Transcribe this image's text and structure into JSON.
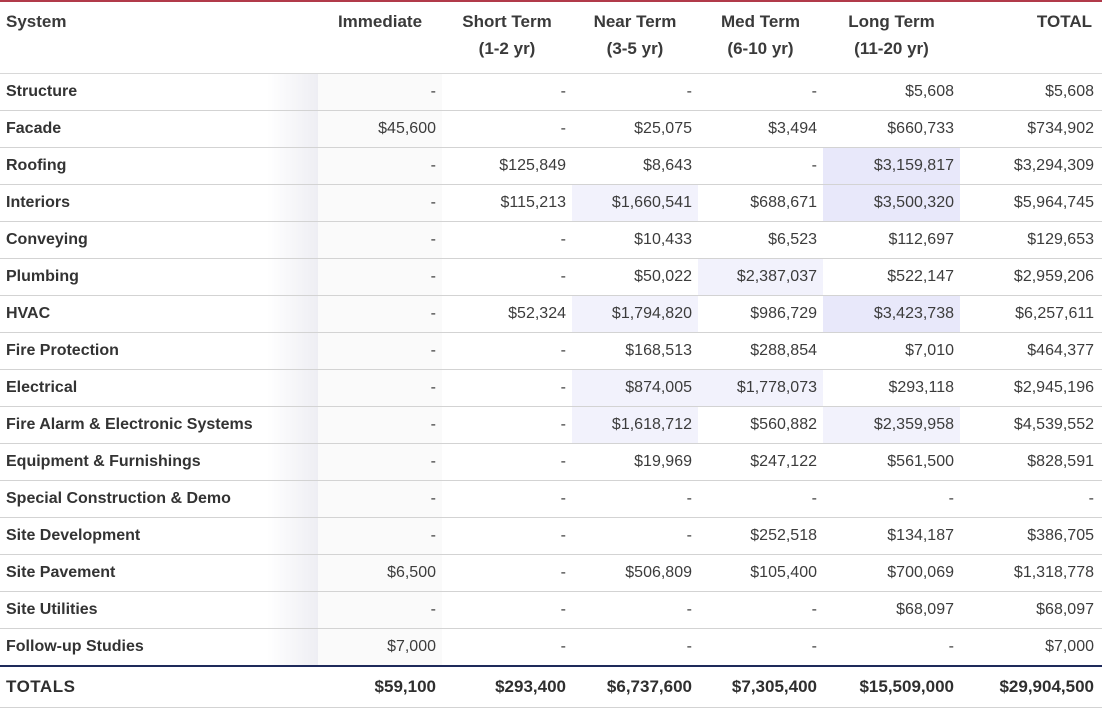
{
  "headers": {
    "system": "System",
    "immediate": "Immediate",
    "short_term": [
      "Short Term",
      "(1-2 yr)"
    ],
    "near_term": [
      "Near Term",
      "(3-5 yr)"
    ],
    "med_term": [
      "Med Term",
      "(6-10 yr)"
    ],
    "long_term": [
      "Long Term",
      "(11-20 yr)"
    ],
    "total": "TOTAL"
  },
  "rows": [
    {
      "system": "Structure",
      "values": [
        "-",
        "-",
        "-",
        "-",
        "$5,608",
        "$5,608"
      ],
      "shade": [
        "",
        "",
        "",
        "",
        "",
        ""
      ]
    },
    {
      "system": "Facade",
      "values": [
        "$45,600",
        "-",
        "$25,075",
        "$3,494",
        "$660,733",
        "$734,902"
      ],
      "shade": [
        "",
        "",
        "",
        "",
        "",
        ""
      ]
    },
    {
      "system": "Roofing",
      "values": [
        "-",
        "$125,849",
        "$8,643",
        "-",
        "$3,159,817",
        "$3,294,309"
      ],
      "shade": [
        "",
        "",
        "",
        "",
        "hl",
        ""
      ]
    },
    {
      "system": "Interiors",
      "values": [
        "-",
        "$115,213",
        "$1,660,541",
        "$688,671",
        "$3,500,320",
        "$5,964,745"
      ],
      "shade": [
        "",
        "",
        "hl-lt",
        "",
        "hl",
        ""
      ]
    },
    {
      "system": "Conveying",
      "values": [
        "-",
        "-",
        "$10,433",
        "$6,523",
        "$112,697",
        "$129,653"
      ],
      "shade": [
        "",
        "",
        "",
        "",
        "",
        ""
      ]
    },
    {
      "system": "Plumbing",
      "values": [
        "-",
        "-",
        "$50,022",
        "$2,387,037",
        "$522,147",
        "$2,959,206"
      ],
      "shade": [
        "",
        "",
        "",
        "hl-lt",
        "",
        ""
      ]
    },
    {
      "system": "HVAC",
      "values": [
        "-",
        "$52,324",
        "$1,794,820",
        "$986,729",
        "$3,423,738",
        "$6,257,611"
      ],
      "shade": [
        "",
        "",
        "hl-lt",
        "",
        "hl",
        ""
      ]
    },
    {
      "system": "Fire Protection",
      "values": [
        "-",
        "-",
        "$168,513",
        "$288,854",
        "$7,010",
        "$464,377"
      ],
      "shade": [
        "",
        "",
        "",
        "",
        "",
        ""
      ]
    },
    {
      "system": "Electrical",
      "values": [
        "-",
        "-",
        "$874,005",
        "$1,778,073",
        "$293,118",
        "$2,945,196"
      ],
      "shade": [
        "",
        "",
        "hl-lt",
        "hl-lt",
        "",
        ""
      ]
    },
    {
      "system": "Fire Alarm & Electronic Systems",
      "values": [
        "-",
        "-",
        "$1,618,712",
        "$560,882",
        "$2,359,958",
        "$4,539,552"
      ],
      "shade": [
        "",
        "",
        "hl-lt",
        "",
        "hl-lt",
        ""
      ]
    },
    {
      "system": "Equipment & Furnishings",
      "values": [
        "-",
        "-",
        "$19,969",
        "$247,122",
        "$561,500",
        "$828,591"
      ],
      "shade": [
        "",
        "",
        "",
        "",
        "",
        ""
      ]
    },
    {
      "system": "Special Construction & Demo",
      "values": [
        "-",
        "-",
        "-",
        "-",
        "-",
        "-"
      ],
      "shade": [
        "",
        "",
        "",
        "",
        "",
        ""
      ]
    },
    {
      "system": "Site Development",
      "values": [
        "-",
        "-",
        "-",
        "$252,518",
        "$134,187",
        "$386,705"
      ],
      "shade": [
        "",
        "",
        "",
        "",
        "",
        ""
      ]
    },
    {
      "system": "Site Pavement",
      "values": [
        "$6,500",
        "-",
        "$506,809",
        "$105,400",
        "$700,069",
        "$1,318,778"
      ],
      "shade": [
        "",
        "",
        "",
        "",
        "",
        ""
      ]
    },
    {
      "system": "Site Utilities",
      "values": [
        "-",
        "-",
        "-",
        "-",
        "$68,097",
        "$68,097"
      ],
      "shade": [
        "",
        "",
        "",
        "",
        "",
        ""
      ]
    },
    {
      "system": "Follow-up Studies",
      "values": [
        "$7,000",
        "-",
        "-",
        "-",
        "-",
        "$7,000"
      ],
      "shade": [
        "",
        "",
        "",
        "",
        "",
        ""
      ]
    }
  ],
  "totals": {
    "label": "TOTALS",
    "values": [
      "$59,100",
      "$293,400",
      "$6,737,600",
      "$7,305,400",
      "$15,509,000",
      "$29,904,500"
    ]
  },
  "colors": {
    "accent_top": "#b13a4a",
    "totals_rule": "#1e2a5a",
    "highlight_strong": "#e8e8fa",
    "highlight_light": "#f2f2fc"
  }
}
